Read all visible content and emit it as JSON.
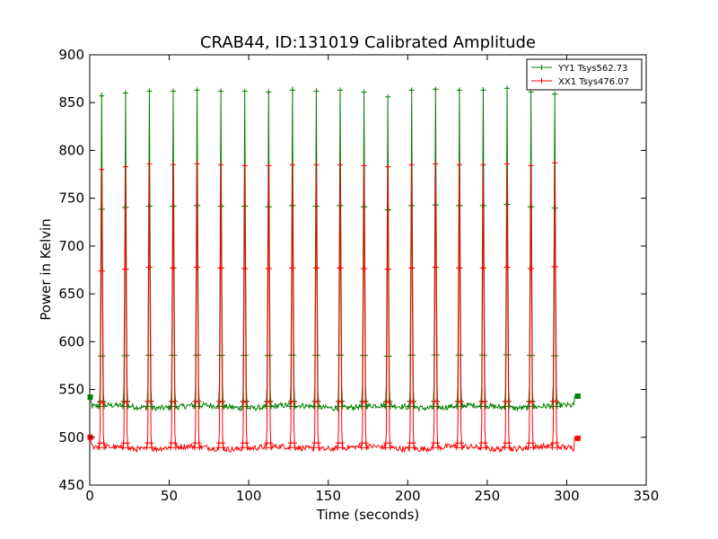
{
  "chart_data": {
    "type": "line",
    "title": "CRAB44, ID:131019 Calibrated Amplitude",
    "xlabel": "Time (seconds)",
    "ylabel": "Power in Kelvin",
    "xlim": [
      0,
      350
    ],
    "ylim": [
      450,
      900
    ],
    "xticks": [
      "0",
      "50",
      "100",
      "150",
      "200",
      "250",
      "300",
      "350"
    ],
    "yticks": [
      "450",
      "500",
      "550",
      "600",
      "650",
      "700",
      "750",
      "800",
      "850",
      "900"
    ],
    "grid": false,
    "legend_position": "top-right",
    "series": [
      {
        "name": "YY1 Tsys562.73",
        "color": "#008000",
        "baseline": 532,
        "peak_times": [
          7.5,
          22.5,
          37.5,
          52.5,
          67.5,
          82.5,
          97.5,
          112.5,
          127.5,
          142.5,
          157.5,
          172.5,
          187.5,
          202.5,
          217.5,
          232.5,
          247.5,
          262.5,
          277.5,
          292.5
        ],
        "peak_values": [
          857,
          860,
          862,
          862,
          863,
          862,
          862,
          861,
          863,
          862,
          863,
          861,
          856,
          863,
          864,
          863,
          863,
          865,
          861,
          859
        ],
        "end_time": 307,
        "start_value": 542,
        "end_value": 543
      },
      {
        "name": "XX1 Tsys476.07",
        "color": "#ff0000",
        "baseline": 489,
        "peak_times": [
          7.5,
          22.5,
          37.5,
          52.5,
          67.5,
          82.5,
          97.5,
          112.5,
          127.5,
          142.5,
          157.5,
          172.5,
          187.5,
          202.5,
          217.5,
          232.5,
          247.5,
          262.5,
          277.5,
          292.5
        ],
        "peak_values": [
          780,
          783,
          786,
          785,
          786,
          785,
          784,
          784,
          785,
          785,
          785,
          784,
          783,
          785,
          786,
          785,
          785,
          786,
          784,
          787
        ],
        "end_time": 307,
        "start_value": 500,
        "end_value": 499
      }
    ]
  }
}
